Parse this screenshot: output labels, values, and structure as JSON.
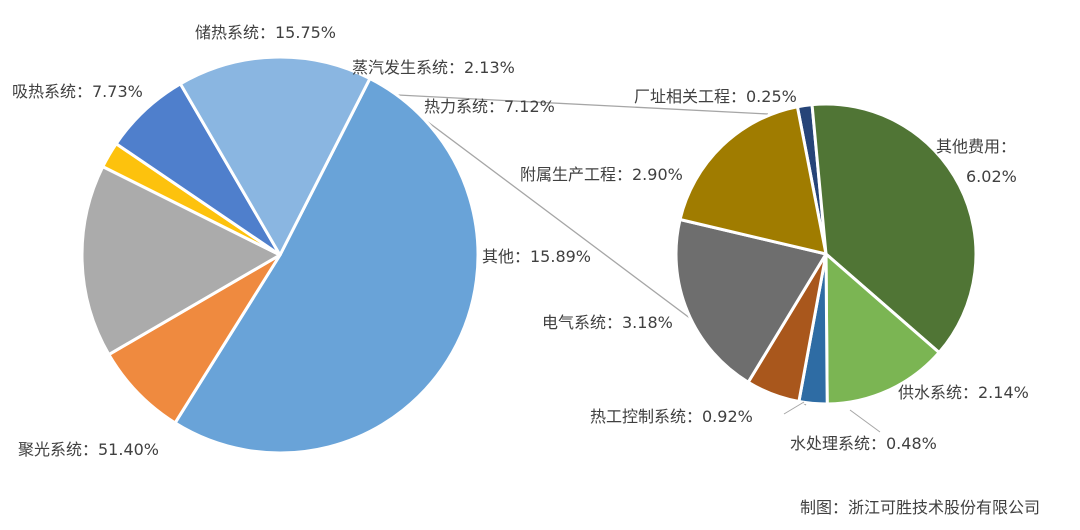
{
  "chart_data": {
    "type": "pie",
    "title": "",
    "main_slices": [
      {
        "name": "聚光系统",
        "value": 51.4,
        "label": "聚光系统：51.40%",
        "color": "#69A3D8"
      },
      {
        "name": "吸热系统",
        "value": 7.73,
        "label": "吸热系统：7.73%",
        "color": "#EF8A3F"
      },
      {
        "name": "储热系统",
        "value": 15.75,
        "label": "储热系统：15.75%",
        "color": "#ABABAB"
      },
      {
        "name": "蒸汽发生系统",
        "value": 2.13,
        "label": "蒸汽发生系统：2.13%",
        "color": "#FDC20D"
      },
      {
        "name": "热力系统",
        "value": 7.12,
        "label": "热力系统：7.12%",
        "color": "#4F7FCC"
      },
      {
        "name": "其他",
        "value": 15.89,
        "label": "其他：15.89%",
        "color": "#8AB6E1"
      }
    ],
    "sub_slices": [
      {
        "name": "厂址相关工程",
        "value": 0.25,
        "label": "厂址相关工程：0.25%",
        "color": "#264478"
      },
      {
        "name": "其他费用",
        "value": 6.02,
        "label_name": "其他费用：",
        "label_value": "6.02%",
        "color": "#507535"
      },
      {
        "name": "供水系统",
        "value": 2.14,
        "label": "供水系统：2.14%",
        "color": "#7BB553"
      },
      {
        "name": "水处理系统",
        "value": 0.48,
        "label": "水处理系统：0.48%",
        "color": "#2E6CA4"
      },
      {
        "name": "热工控制系统",
        "value": 0.92,
        "label": "热工控制系统：0.92%",
        "color": "#A9571C"
      },
      {
        "name": "电气系统",
        "value": 3.18,
        "label": "电气系统：3.18%",
        "color": "#6E6E6E"
      },
      {
        "name": "附属生产工程",
        "value": 2.9,
        "label": "附属生产工程：2.90%",
        "color": "#A07C00"
      }
    ]
  },
  "source_note": "制图：浙江可胜技术股份有限公司"
}
